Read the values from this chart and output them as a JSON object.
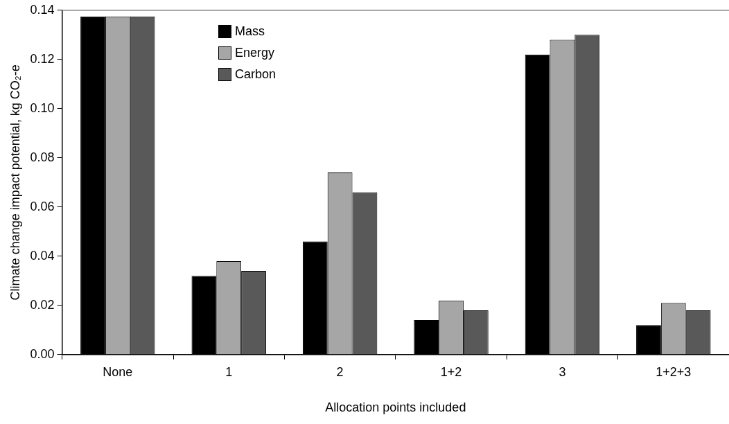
{
  "chart_data": {
    "type": "bar",
    "xlabel": "Allocation points included",
    "ylabel": "Climate change impact potential, kg CO₂-e",
    "categories": [
      "None",
      "1",
      "2",
      "1+2",
      "3",
      "1+2+3"
    ],
    "series": [
      {
        "name": "Mass",
        "color": "#000000",
        "values": [
          0.1375,
          0.032,
          0.046,
          0.014,
          0.122,
          0.012
        ]
      },
      {
        "name": "Energy",
        "color": "#a6a6a6",
        "values": [
          0.1375,
          0.038,
          0.074,
          0.022,
          0.128,
          0.021
        ]
      },
      {
        "name": "Carbon",
        "color": "#595959",
        "values": [
          0.1375,
          0.034,
          0.066,
          0.018,
          0.13,
          0.018
        ]
      }
    ],
    "ylim": [
      0,
      0.14
    ],
    "yticks": [
      {
        "value": 0,
        "label": "0.00"
      },
      {
        "value": 0.02,
        "label": "0.02"
      },
      {
        "value": 0.04,
        "label": "0.04"
      },
      {
        "value": 0.06,
        "label": "0.06"
      },
      {
        "value": 0.08,
        "label": "0.08"
      },
      {
        "value": 0.1,
        "label": "0.10"
      },
      {
        "value": 0.12,
        "label": "0.12"
      },
      {
        "value": 0.14,
        "label": "0.14"
      }
    ],
    "grid": false,
    "legend": "top"
  }
}
